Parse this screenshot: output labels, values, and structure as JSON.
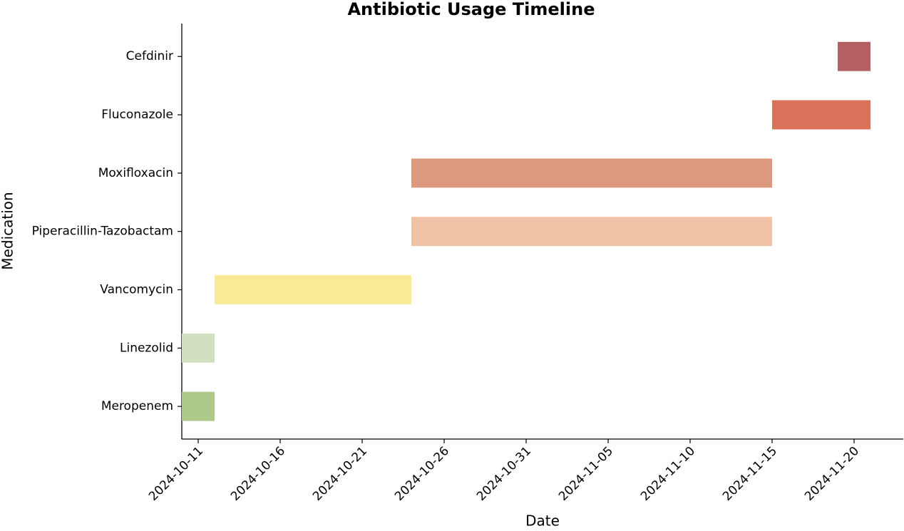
{
  "chart_data": {
    "type": "gantt",
    "title": "Antibiotic Usage Timeline",
    "x_label": "Date",
    "y_label": "Medication",
    "tasks": [
      {
        "name": "Meropenem",
        "start": "2024-10-10",
        "end": "2024-10-12",
        "color": "#aec98a"
      },
      {
        "name": "Linezolid",
        "start": "2024-10-10",
        "end": "2024-10-12",
        "color": "#d3e0c0"
      },
      {
        "name": "Vancomycin",
        "start": "2024-10-12",
        "end": "2024-10-24",
        "color": "#f8ea97"
      },
      {
        "name": "Piperacillin-Tazobactam",
        "start": "2024-10-24",
        "end": "2024-11-15",
        "color": "#efc2a6"
      },
      {
        "name": "Moxifloxacin",
        "start": "2024-10-24",
        "end": "2024-11-15",
        "color": "#de9a7e"
      },
      {
        "name": "Fluconazole",
        "start": "2024-11-15",
        "end": "2024-11-21",
        "color": "#d87259"
      },
      {
        "name": "Cefdinir",
        "start": "2024-11-19",
        "end": "2024-11-21",
        "color": "#b45f62"
      }
    ],
    "xlim": [
      "2024-10-10",
      "2024-11-23"
    ],
    "xticks": [
      "2024-10-11",
      "2024-10-16",
      "2024-10-21",
      "2024-10-26",
      "2024-10-31",
      "2024-11-05",
      "2024-11-10",
      "2024-11-15",
      "2024-11-20"
    ]
  }
}
